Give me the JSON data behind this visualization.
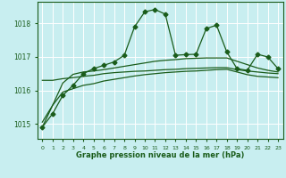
{
  "title": "Graphe pression niveau de la mer (hPa)",
  "bg_color": "#c8eef0",
  "grid_color": "#ffffff",
  "line_color": "#1a5c1a",
  "x_ticks": [
    0,
    1,
    2,
    3,
    4,
    5,
    6,
    7,
    8,
    9,
    10,
    11,
    12,
    13,
    14,
    15,
    16,
    17,
    18,
    19,
    20,
    21,
    22,
    23
  ],
  "y_ticks": [
    1015,
    1016,
    1017,
    1018
  ],
  "ylim": [
    1014.55,
    1018.65
  ],
  "xlim": [
    -0.5,
    23.5
  ],
  "series1": [
    1014.9,
    1015.3,
    1015.85,
    1016.15,
    1016.5,
    1016.65,
    1016.75,
    1016.85,
    1017.05,
    1017.9,
    1018.35,
    1018.42,
    1018.28,
    1017.05,
    1017.07,
    1017.08,
    1017.85,
    1017.95,
    1017.15,
    1016.65,
    1016.6,
    1017.08,
    1017.0,
    1016.65
  ],
  "series2": [
    1016.3,
    1016.3,
    1016.35,
    1016.38,
    1016.42,
    1016.45,
    1016.5,
    1016.53,
    1016.55,
    1016.57,
    1016.58,
    1016.6,
    1016.62,
    1016.63,
    1016.65,
    1016.66,
    1016.67,
    1016.68,
    1016.68,
    1016.62,
    1016.58,
    1016.55,
    1016.52,
    1016.5
  ],
  "series3": [
    1015.05,
    1015.55,
    1015.95,
    1016.05,
    1016.15,
    1016.2,
    1016.28,
    1016.33,
    1016.38,
    1016.43,
    1016.47,
    1016.5,
    1016.53,
    1016.55,
    1016.57,
    1016.58,
    1016.6,
    1016.62,
    1016.63,
    1016.55,
    1016.47,
    1016.42,
    1016.4,
    1016.38
  ],
  "series4": [
    1014.9,
    1015.55,
    1016.22,
    1016.48,
    1016.55,
    1016.58,
    1016.62,
    1016.67,
    1016.72,
    1016.77,
    1016.82,
    1016.87,
    1016.9,
    1016.92,
    1016.95,
    1016.96,
    1016.97,
    1016.97,
    1016.97,
    1016.87,
    1016.77,
    1016.67,
    1016.6,
    1016.55
  ],
  "marker": "D",
  "markersize": 2.5
}
